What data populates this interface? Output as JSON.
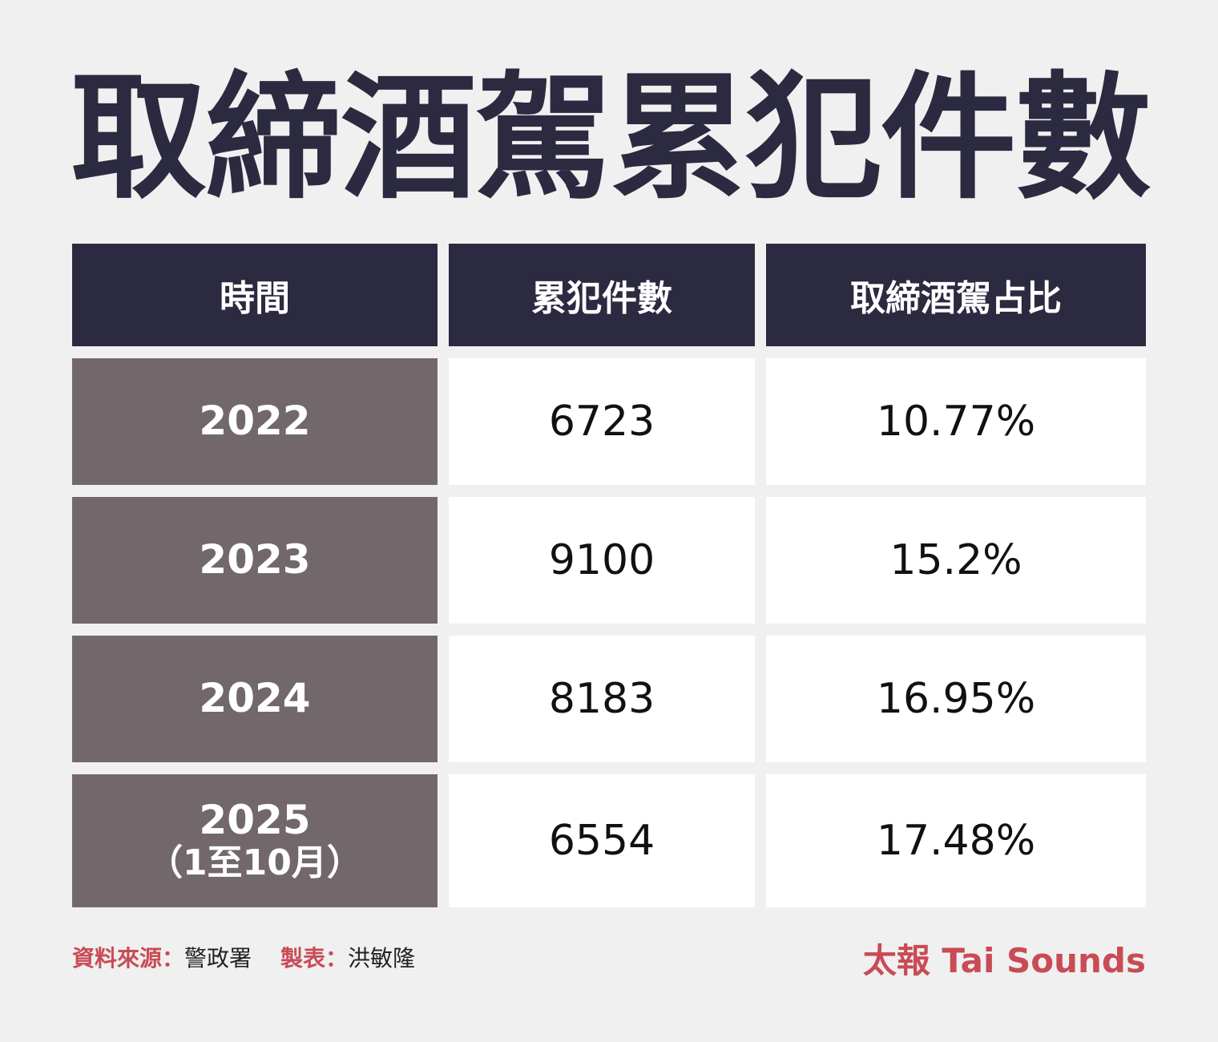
{
  "title_chars": [
    "取",
    "締",
    "酒",
    "駕",
    "累",
    "犯",
    "件",
    "數"
  ],
  "chart_data": {
    "type": "table",
    "title": "取締酒駕累犯件數",
    "columns": [
      "時間",
      "累犯件數",
      "取締酒駕占比"
    ],
    "rows": [
      {
        "year": "2022",
        "year_note": "",
        "count": "6723",
        "ratio": "10.77%"
      },
      {
        "year": "2023",
        "year_note": "",
        "count": "9100",
        "ratio": "15.2%"
      },
      {
        "year": "2024",
        "year_note": "",
        "count": "8183",
        "ratio": "16.95%"
      },
      {
        "year": "2025",
        "year_note": "（1至10月）",
        "count": "6554",
        "ratio": "17.48%"
      }
    ]
  },
  "footer": {
    "source_label": "資料來源：",
    "source_value": "警政署",
    "maker_label": "製表：",
    "maker_value": "洪敏隆",
    "brand": "太報 Tai Sounds"
  },
  "colors": {
    "header_bg": "#2b2a40",
    "year_bg": "#72686b",
    "accent": "#c94b55",
    "page_bg": "#f0f0f0"
  }
}
